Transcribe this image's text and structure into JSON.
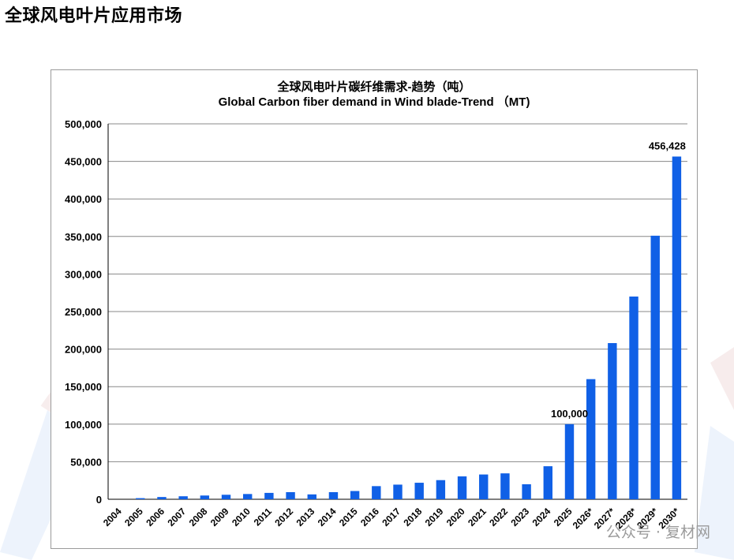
{
  "page": {
    "title": "全球风电叶片应用市场",
    "watermark": "公众号 · 复材网"
  },
  "colors": {
    "bar": "#1060e6",
    "grid": "#888888",
    "frame": "#9a9a9a"
  },
  "chart_data": {
    "type": "bar",
    "title": "全球风电叶片碳纤维需求-趋势（吨）",
    "subtitle": "Global Carbon fiber demand in Wind blade-Trend （MT)",
    "xlabel": "",
    "ylabel": "",
    "ylim": [
      0,
      500000
    ],
    "yticks": [
      0,
      50000,
      100000,
      150000,
      200000,
      250000,
      300000,
      350000,
      400000,
      450000,
      500000
    ],
    "ytick_labels": [
      "0",
      "50,000",
      "100,000",
      "150,000",
      "200,000",
      "250,000",
      "300,000",
      "350,000",
      "400,000",
      "450,000",
      "500,000"
    ],
    "grid": true,
    "legend": "none",
    "categories": [
      "2004",
      "2005",
      "2006",
      "2007",
      "2008",
      "2009",
      "2010",
      "2011",
      "2012",
      "2013",
      "2014",
      "2015",
      "2016",
      "2017",
      "2018",
      "2019",
      "2020",
      "2021",
      "2022",
      "2023",
      "2024",
      "2025",
      "2026*",
      "2027*",
      "2028*",
      "2029*",
      "2030*"
    ],
    "values": [
      0,
      1500,
      3000,
      4000,
      5000,
      6000,
      7000,
      8500,
      9500,
      6500,
      9500,
      11000,
      17500,
      19500,
      22000,
      25500,
      30500,
      33000,
      34500,
      20000,
      44000,
      100000,
      160000,
      208000,
      270000,
      351000,
      456428
    ],
    "data_labels": [
      {
        "category": "2025",
        "text": "100,000"
      },
      {
        "category": "2030*",
        "text": "456,428"
      }
    ]
  }
}
